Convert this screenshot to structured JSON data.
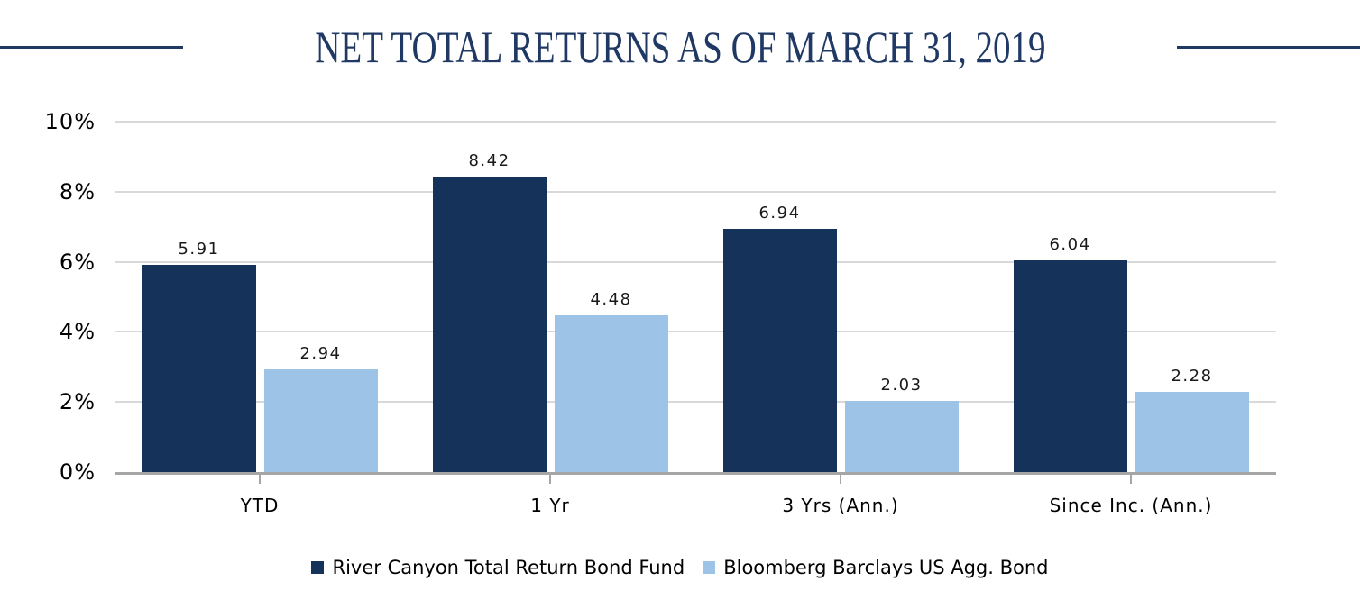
{
  "header": {
    "title": "NET TOTAL RETURNS AS OF MARCH 31, 2019",
    "rule_color": "#1F3864",
    "title_color": "#1F3864"
  },
  "chart_data": {
    "type": "bar",
    "title": "NET TOTAL RETURNS AS OF MARCH 31, 2019",
    "categories": [
      "YTD",
      "1 Yr",
      "3 Yrs (Ann.)",
      "Since Inc. (Ann.)"
    ],
    "series": [
      {
        "name": "River Canyon Total Return Bond Fund",
        "color": "#15335A",
        "values": [
          5.91,
          8.42,
          6.94,
          6.04
        ]
      },
      {
        "name": "Bloomberg Barclays US Agg. Bond",
        "color": "#9DC3E6",
        "values": [
          2.94,
          4.48,
          2.03,
          2.28
        ]
      }
    ],
    "value_labels": [
      "5.91",
      "8.42",
      "6.94",
      "6.04",
      "2.94",
      "4.48",
      "2.03",
      "2.28"
    ],
    "xlabel": "",
    "ylabel": "",
    "ylim": [
      0,
      10
    ],
    "yticks": [
      0,
      2,
      4,
      6,
      8,
      10
    ],
    "ytick_labels": [
      "0%",
      "2%",
      "4%",
      "6%",
      "8%",
      "10%"
    ],
    "grid": true,
    "gridline_color": "#D9D9D9",
    "axis_line_color": "#A6A6A6",
    "legend_position": "bottom"
  }
}
